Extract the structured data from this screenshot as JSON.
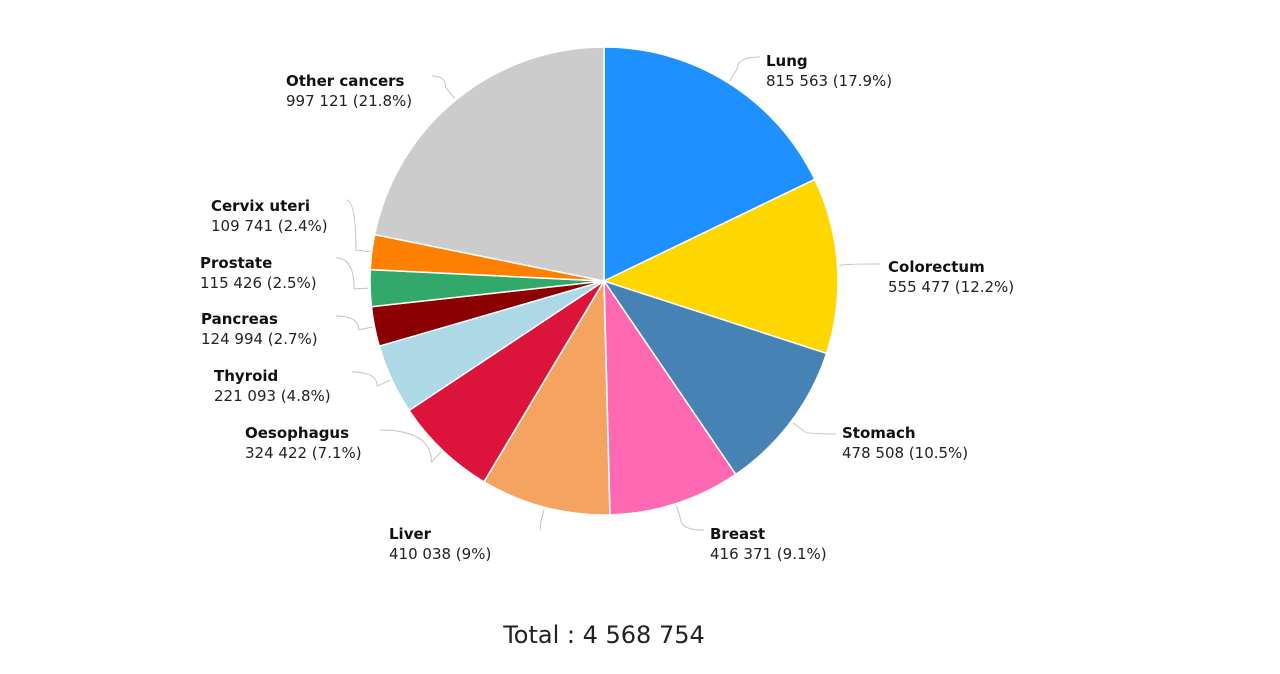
{
  "chart_data": {
    "type": "pie",
    "title": "",
    "slices": [
      {
        "name": "Lung",
        "value": 815563,
        "label_value": "815 563 (17.9%)",
        "color": "#1E90FF"
      },
      {
        "name": "Colorectum",
        "value": 555477,
        "label_value": "555 477 (12.2%)",
        "color": "#FFD700"
      },
      {
        "name": "Stomach",
        "value": 478508,
        "label_value": "478 508 (10.5%)",
        "color": "#4682B4"
      },
      {
        "name": "Breast",
        "value": 416371,
        "label_value": "416 371 (9.1%)",
        "color": "#FF69B4"
      },
      {
        "name": "Liver",
        "value": 410038,
        "label_value": "410 038 (9%)",
        "color": "#F4A460"
      },
      {
        "name": "Oesophagus",
        "value": 324422,
        "label_value": "324 422 (7.1%)",
        "color": "#DC143C"
      },
      {
        "name": "Thyroid",
        "value": 221093,
        "label_value": "221 093 (4.8%)",
        "color": "#ADD8E6"
      },
      {
        "name": "Pancreas",
        "value": 124994,
        "label_value": "124 994 (2.7%)",
        "color": "#8B0000"
      },
      {
        "name": "Prostate",
        "value": 115426,
        "label_value": "115 426 (2.5%)",
        "color": "#32A86B"
      },
      {
        "name": "Cervix uteri",
        "value": 109741,
        "label_value": "109 741 (2.4%)",
        "color": "#FF7F00"
      },
      {
        "name": "Other cancers",
        "value": 997121,
        "label_value": "997 121 (21.8%)",
        "color": "#CCCCCC"
      }
    ],
    "total_text": "Total : 4 568 754",
    "start_angle_deg": 0,
    "direction": "clockwise",
    "legend": "none"
  }
}
